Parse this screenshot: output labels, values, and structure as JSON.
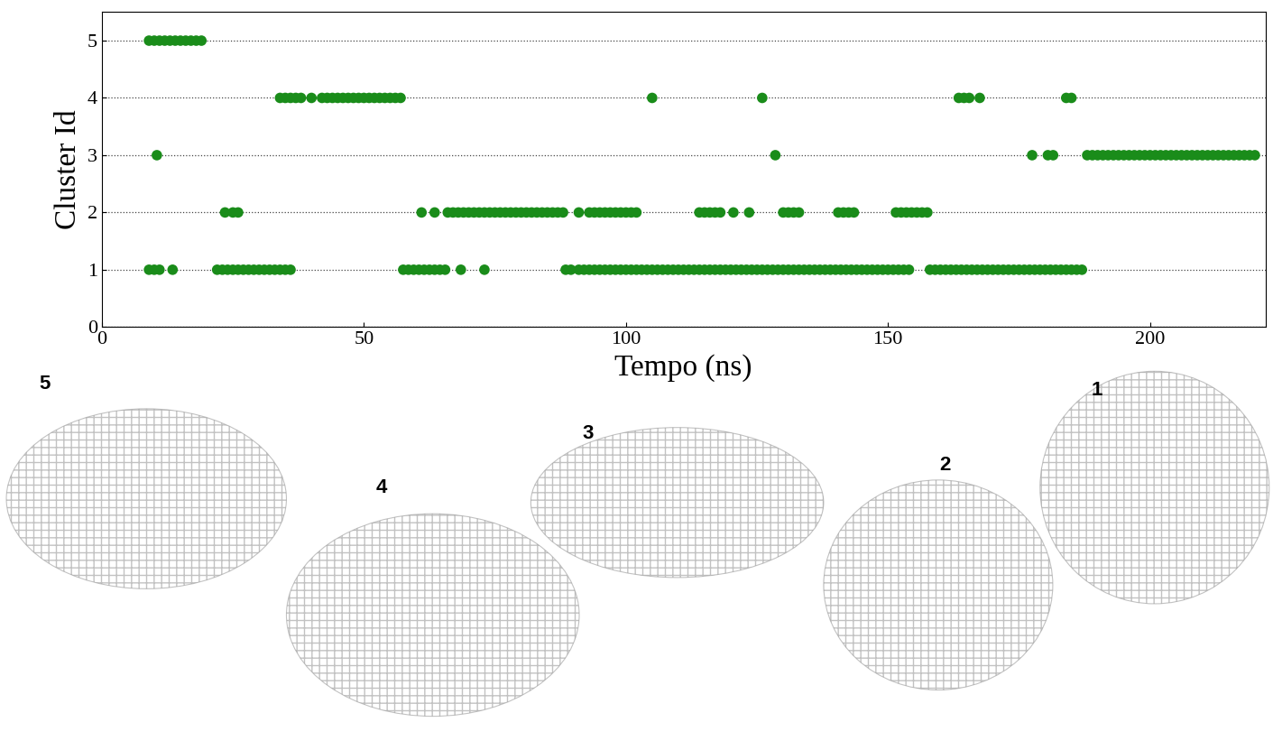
{
  "chart_data": {
    "type": "scatter",
    "x_label": "Tempo (ns)",
    "y_label": "Cluster Id",
    "color": "#1a8c1a",
    "marker": "o",
    "grid": true,
    "xlim": [
      0,
      222
    ],
    "xticks": [
      0,
      50,
      100,
      150,
      200
    ],
    "ylim": [
      0,
      5.5
    ],
    "yticks": [
      0,
      1,
      2,
      3,
      4,
      5
    ],
    "structure_labels": [
      "5",
      "4",
      "3",
      "2",
      "1"
    ],
    "x": [
      9,
      10,
      11,
      12,
      13,
      14,
      15,
      16,
      17,
      18,
      19,
      10.5,
      128.5,
      177.5,
      180.5,
      181.5,
      188,
      189,
      190,
      191,
      192,
      193,
      194,
      195,
      196,
      197,
      198,
      199,
      200,
      201,
      202,
      203,
      204,
      205,
      206,
      207,
      208,
      209,
      210,
      211,
      212,
      213,
      214,
      215,
      216,
      217,
      218,
      219,
      220,
      34,
      35,
      36,
      37,
      38,
      40,
      42,
      43,
      44,
      45,
      46,
      47,
      48,
      49,
      50,
      51,
      52,
      53,
      54,
      55,
      56,
      57,
      105,
      126,
      163.5,
      164.5,
      165.5,
      167.5,
      184,
      185,
      23.5,
      25,
      26,
      61,
      63.5,
      66,
      67,
      68,
      69,
      70,
      71,
      72,
      73,
      74,
      75,
      76,
      77,
      78,
      79,
      80,
      81,
      82,
      83,
      84,
      85,
      86,
      87,
      88,
      91,
      93,
      94,
      95,
      96,
      97,
      98,
      99,
      100,
      101,
      102,
      114,
      115,
      116,
      117,
      118,
      120.5,
      123.5,
      130,
      131,
      132,
      133,
      140.5,
      141.5,
      142.5,
      143.5,
      151.5,
      152.5,
      153.5,
      154.5,
      155.5,
      156.5,
      157.5,
      9,
      10,
      11,
      13.5,
      22,
      23,
      24,
      25,
      26,
      27,
      28,
      29,
      30,
      31,
      32,
      33,
      34,
      35,
      36,
      57.5,
      58.5,
      59.5,
      60.5,
      61.5,
      62.5,
      63.5,
      64.5,
      65.5,
      68.5,
      73,
      88.5,
      89.5,
      91,
      92,
      93,
      94,
      95,
      96,
      97,
      98,
      99,
      100,
      101,
      102,
      103,
      104,
      105,
      106,
      107,
      108,
      109,
      110,
      111,
      112,
      113,
      114,
      115,
      116,
      117,
      118,
      119,
      120,
      121,
      122,
      123,
      124,
      125,
      126,
      127,
      128,
      129,
      130,
      131,
      132,
      133,
      134,
      135,
      136,
      137,
      138,
      139,
      140,
      141,
      142,
      143,
      144,
      145,
      146,
      147,
      148,
      149,
      150,
      151,
      152,
      153,
      154,
      158,
      159,
      160,
      161,
      162,
      163,
      164,
      165,
      166,
      167,
      168,
      169,
      170,
      171,
      172,
      173,
      174,
      175,
      176,
      177,
      178,
      179,
      180,
      181,
      182,
      183,
      184,
      185,
      186,
      187
    ],
    "values": [
      5,
      5,
      5,
      5,
      5,
      5,
      5,
      5,
      5,
      5,
      5,
      3,
      3,
      3,
      3,
      3,
      3,
      3,
      3,
      3,
      3,
      3,
      3,
      3,
      3,
      3,
      3,
      3,
      3,
      3,
      3,
      3,
      3,
      3,
      3,
      3,
      3,
      3,
      3,
      3,
      3,
      3,
      3,
      3,
      3,
      3,
      3,
      3,
      3,
      4,
      4,
      4,
      4,
      4,
      4,
      4,
      4,
      4,
      4,
      4,
      4,
      4,
      4,
      4,
      4,
      4,
      4,
      4,
      4,
      4,
      4,
      4,
      4,
      4,
      4,
      4,
      4,
      4,
      4,
      2,
      2,
      2,
      2,
      2,
      2,
      2,
      2,
      2,
      2,
      2,
      2,
      2,
      2,
      2,
      2,
      2,
      2,
      2,
      2,
      2,
      2,
      2,
      2,
      2,
      2,
      2,
      2,
      2,
      2,
      2,
      2,
      2,
      2,
      2,
      2,
      2,
      2,
      2,
      2,
      2,
      2,
      2,
      2,
      2,
      2,
      2,
      2,
      2,
      2,
      2,
      2,
      2,
      2,
      2,
      2,
      2,
      2,
      2,
      2,
      2,
      1,
      1,
      1,
      1,
      1,
      1,
      1,
      1,
      1,
      1,
      1,
      1,
      1,
      1,
      1,
      1,
      1,
      1,
      1,
      1,
      1,
      1,
      1,
      1,
      1,
      1,
      1,
      1,
      1,
      1,
      1,
      1,
      1,
      1,
      1,
      1,
      1,
      1,
      1,
      1,
      1,
      1,
      1,
      1,
      1,
      1,
      1,
      1,
      1,
      1,
      1,
      1,
      1,
      1,
      1,
      1,
      1,
      1,
      1,
      1,
      1,
      1,
      1,
      1,
      1,
      1,
      1,
      1,
      1,
      1,
      1,
      1,
      1,
      1,
      1,
      1,
      1,
      1,
      1,
      1,
      1,
      1,
      1,
      1,
      1,
      1,
      1,
      1,
      1,
      1,
      1,
      1,
      1,
      1,
      1,
      1,
      1,
      1,
      1,
      1,
      1,
      1,
      1,
      1,
      1,
      1,
      1,
      1,
      1,
      1,
      1,
      1,
      1,
      1,
      1,
      1,
      1,
      1,
      1,
      1,
      1,
      1,
      1,
      1,
      1,
      1
    ]
  }
}
